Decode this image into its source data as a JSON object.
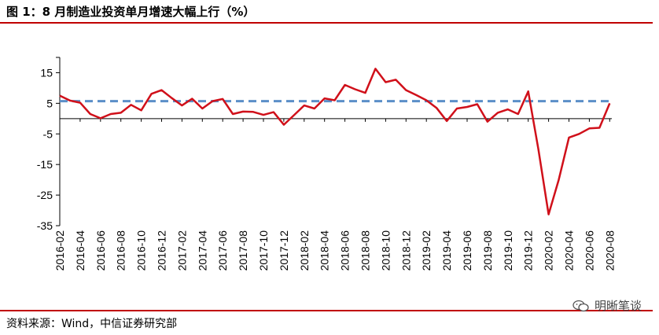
{
  "title": "图 1：8 月制造业投资单月增速大幅上行（%）",
  "source": "资料来源：Wind，中信证券研究部",
  "watermark": {
    "text": "明晰笔谈",
    "icon": "wechat-icon"
  },
  "colors": {
    "line": "#d0101a",
    "reference": "#5b8fc8",
    "rule": "#c00000"
  },
  "chart_data": {
    "type": "line",
    "title": "",
    "xlabel": "",
    "ylabel": "",
    "ylim": [
      -35,
      20
    ],
    "yticks": [
      15,
      5,
      -5,
      -15,
      -25,
      -35
    ],
    "grid": false,
    "x_tick_labels": [
      "2016-02",
      "2016-04",
      "2016-06",
      "2016-08",
      "2016-10",
      "2016-12",
      "2017-02",
      "2017-04",
      "2017-06",
      "2017-08",
      "2017-10",
      "2017-12",
      "2018-02",
      "2018-04",
      "2018-06",
      "2018-08",
      "2018-10",
      "2018-12",
      "2019-02",
      "2019-04",
      "2019-06",
      "2019-08",
      "2019-10",
      "2019-12",
      "2020-02",
      "2020-04",
      "2020-06",
      "2020-08"
    ],
    "x": [
      "2016-02",
      "2016-03",
      "2016-04",
      "2016-05",
      "2016-06",
      "2016-07",
      "2016-08",
      "2016-09",
      "2016-10",
      "2016-11",
      "2016-12",
      "2017-01",
      "2017-02",
      "2017-03",
      "2017-04",
      "2017-05",
      "2017-06",
      "2017-07",
      "2017-08",
      "2017-09",
      "2017-10",
      "2017-11",
      "2017-12",
      "2018-01",
      "2018-02",
      "2018-03",
      "2018-04",
      "2018-05",
      "2018-06",
      "2018-07",
      "2018-08",
      "2018-09",
      "2018-10",
      "2018-11",
      "2018-12",
      "2019-01",
      "2019-02",
      "2019-03",
      "2019-04",
      "2019-05",
      "2019-06",
      "2019-07",
      "2019-08",
      "2019-09",
      "2019-10",
      "2019-11",
      "2019-12",
      "2020-01",
      "2020-02",
      "2020-03",
      "2020-04",
      "2020-05",
      "2020-06",
      "2020-07",
      "2020-08"
    ],
    "values": [
      7.5,
      5.9,
      5.2,
      1.5,
      0.1,
      1.5,
      1.9,
      4.5,
      2.7,
      8.1,
      9.3,
      6.7,
      4.3,
      6.5,
      3.3,
      5.7,
      6.4,
      1.5,
      2.3,
      2.2,
      1.2,
      2.1,
      -2.0,
      1.1,
      4.3,
      3.3,
      6.6,
      6.0,
      11.0,
      9.6,
      8.4,
      16.3,
      11.9,
      12.7,
      9.3,
      7.7,
      6.0,
      3.5,
      -0.8,
      3.3,
      3.8,
      4.7,
      -1.0,
      1.9,
      3.0,
      1.5,
      8.9,
      -10.0,
      -31.3,
      -20.0,
      -6.2,
      -5.0,
      -3.2,
      -3.0,
      5.0
    ],
    "reference_line": {
      "y": 5.7,
      "style": "dashed"
    }
  }
}
